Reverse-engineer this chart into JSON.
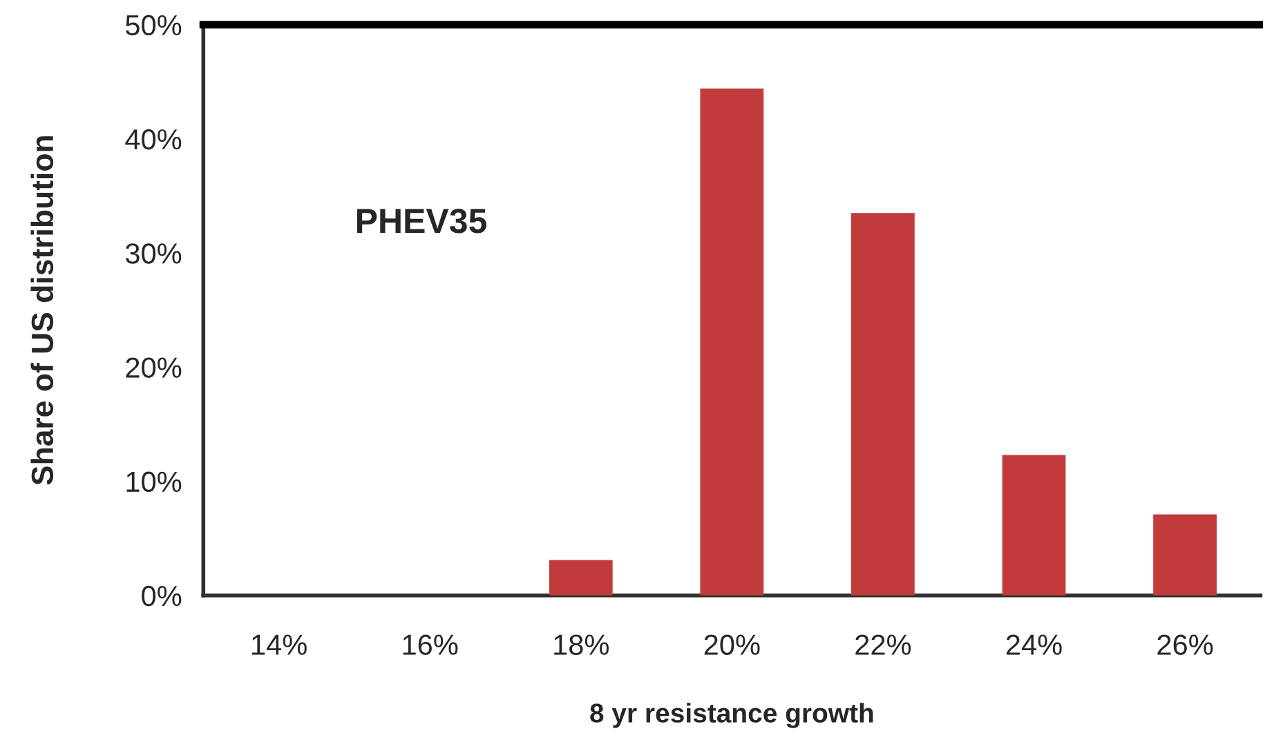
{
  "chart_data": {
    "type": "bar",
    "categories": [
      "14%",
      "16%",
      "18%",
      "20%",
      "22%",
      "24%",
      "26%"
    ],
    "values": [
      0,
      0,
      3.1,
      44.4,
      33.5,
      12.3,
      7.1
    ],
    "color": "#c23b3b",
    "xlabel": "8 yr resistance growth",
    "ylabel": "Share of US distribution",
    "annotations": [
      "PHEV35"
    ],
    "ylim": [
      0,
      50
    ],
    "yticks": [
      {
        "value": 0,
        "label": "0%"
      },
      {
        "value": 10,
        "label": "10%"
      },
      {
        "value": 20,
        "label": "20%"
      },
      {
        "value": 30,
        "label": "30%"
      },
      {
        "value": 40,
        "label": "40%"
      },
      {
        "value": 50,
        "label": "50%"
      }
    ],
    "grid": false,
    "legend": false
  }
}
